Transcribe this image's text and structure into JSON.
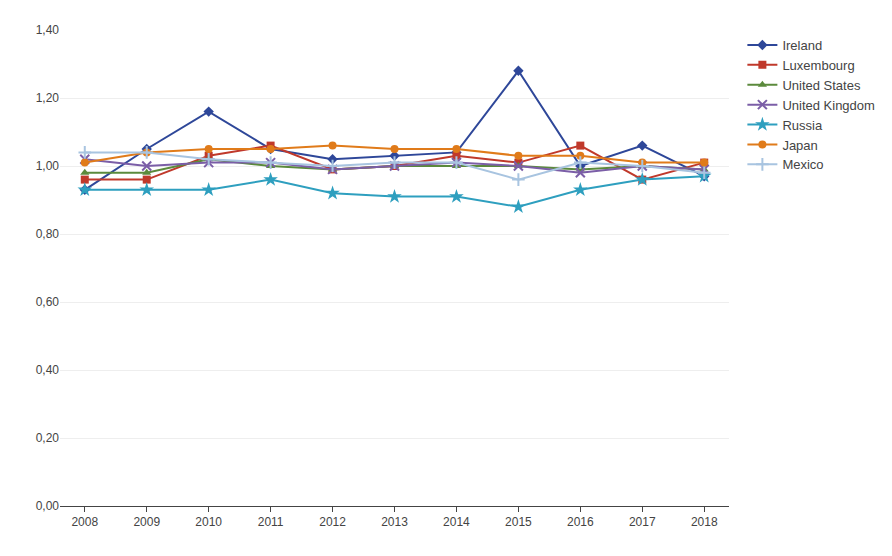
{
  "chart_data": {
    "type": "line",
    "x": [
      2008,
      2009,
      2010,
      2011,
      2012,
      2013,
      2014,
      2015,
      2016,
      2017,
      2018
    ],
    "series": [
      {
        "name": "Ireland",
        "color": "#2E4799",
        "marker": "diamond",
        "values": [
          0.93,
          1.05,
          1.16,
          1.05,
          1.02,
          1.03,
          1.04,
          1.28,
          1.0,
          1.06,
          0.97
        ]
      },
      {
        "name": "Luxembourg",
        "color": "#C0392B",
        "marker": "square",
        "values": [
          0.96,
          0.96,
          1.03,
          1.06,
          0.99,
          1.0,
          1.03,
          1.01,
          1.06,
          0.96,
          1.01
        ]
      },
      {
        "name": "United States",
        "color": "#5B8A3C",
        "marker": "triangle-up",
        "values": [
          0.98,
          0.98,
          1.02,
          1.0,
          0.99,
          1.0,
          1.0,
          1.0,
          0.99,
          1.0,
          0.99
        ]
      },
      {
        "name": "United Kingdom",
        "color": "#7B5EA7",
        "marker": "x-thin",
        "values": [
          1.02,
          1.0,
          1.01,
          1.01,
          0.99,
          1.0,
          1.01,
          1.0,
          0.98,
          1.0,
          0.99
        ]
      },
      {
        "name": "Russia",
        "color": "#2E9FBF",
        "marker": "star",
        "values": [
          0.93,
          0.93,
          0.93,
          0.96,
          0.92,
          0.91,
          0.91,
          0.88,
          0.93,
          0.96,
          0.97
        ]
      },
      {
        "name": "Japan",
        "color": "#E07B1A",
        "marker": "circle",
        "values": [
          1.01,
          1.04,
          1.05,
          1.05,
          1.06,
          1.05,
          1.05,
          1.03,
          1.03,
          1.01,
          1.01
        ]
      },
      {
        "name": "Mexico",
        "color": "#A8C4E0",
        "marker": "cross-thin",
        "values": [
          1.04,
          1.04,
          1.02,
          1.01,
          1.0,
          1.01,
          1.01,
          0.96,
          1.01,
          1.0,
          0.98
        ]
      }
    ],
    "xlim": [
      2007.6,
      2018.4
    ],
    "xticks": [
      2008,
      2009,
      2010,
      2011,
      2012,
      2013,
      2014,
      2015,
      2016,
      2017,
      2018
    ],
    "ylim": [
      0.0,
      1.4
    ],
    "yticks": [
      {
        "value": 0.0,
        "label": "0,00"
      },
      {
        "value": 0.2,
        "label": "0,20"
      },
      {
        "value": 0.4,
        "label": "0,40"
      },
      {
        "value": 0.6,
        "label": "0,60"
      },
      {
        "value": 0.8,
        "label": "0,80"
      },
      {
        "value": 1.0,
        "label": "1,00"
      },
      {
        "value": 1.2,
        "label": "1,20"
      },
      {
        "value": 1.4,
        "label": "1,40"
      }
    ],
    "grid": "y",
    "legend": "right"
  }
}
